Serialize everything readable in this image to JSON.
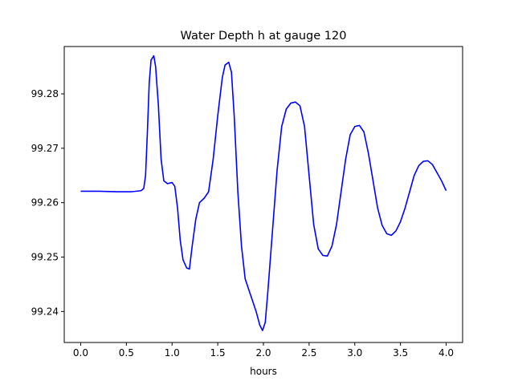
{
  "chart_data": {
    "type": "line",
    "title": "Water Depth h at gauge 120",
    "xlabel": "hours",
    "ylabel": "",
    "xlim": [
      -0.18,
      4.18
    ],
    "ylim": [
      99.2343,
      99.2887
    ],
    "x_ticks": [
      0.0,
      0.5,
      1.0,
      1.5,
      2.0,
      2.5,
      3.0,
      3.5,
      4.0
    ],
    "x_tick_labels": [
      "0.0",
      "0.5",
      "1.0",
      "1.5",
      "2.0",
      "2.5",
      "3.0",
      "3.5",
      "4.0"
    ],
    "y_ticks": [
      99.24,
      99.25,
      99.26,
      99.27,
      99.28
    ],
    "y_tick_labels": [
      "99.24",
      "99.25",
      "99.26",
      "99.27",
      "99.28"
    ],
    "grid": false,
    "legend": "none",
    "series": [
      {
        "color": "#0000ff",
        "points": [
          [
            0.0,
            99.2621
          ],
          [
            0.2,
            99.2621
          ],
          [
            0.4,
            99.262
          ],
          [
            0.55,
            99.262
          ],
          [
            0.66,
            99.2622
          ],
          [
            0.69,
            99.2626
          ],
          [
            0.71,
            99.265
          ],
          [
            0.73,
            99.273
          ],
          [
            0.75,
            99.282
          ],
          [
            0.77,
            99.2862
          ],
          [
            0.8,
            99.287
          ],
          [
            0.82,
            99.285
          ],
          [
            0.85,
            99.278
          ],
          [
            0.88,
            99.268
          ],
          [
            0.91,
            99.264
          ],
          [
            0.95,
            99.2635
          ],
          [
            1.0,
            99.2637
          ],
          [
            1.03,
            99.263
          ],
          [
            1.06,
            99.259
          ],
          [
            1.09,
            99.253
          ],
          [
            1.12,
            99.2495
          ],
          [
            1.16,
            99.248
          ],
          [
            1.19,
            99.2478
          ],
          [
            1.22,
            99.252
          ],
          [
            1.26,
            99.257
          ],
          [
            1.3,
            99.26
          ],
          [
            1.35,
            99.2608
          ],
          [
            1.4,
            99.262
          ],
          [
            1.45,
            99.268
          ],
          [
            1.5,
            99.276
          ],
          [
            1.55,
            99.283
          ],
          [
            1.58,
            99.2853
          ],
          [
            1.62,
            99.2858
          ],
          [
            1.65,
            99.284
          ],
          [
            1.68,
            99.276
          ],
          [
            1.72,
            99.262
          ],
          [
            1.76,
            99.252
          ],
          [
            1.8,
            99.246
          ],
          [
            1.84,
            99.244
          ],
          [
            1.88,
            99.242
          ],
          [
            1.92,
            99.24
          ],
          [
            1.96,
            99.2375
          ],
          [
            1.99,
            99.2365
          ],
          [
            2.02,
            99.238
          ],
          [
            2.05,
            99.244
          ],
          [
            2.1,
            99.255
          ],
          [
            2.15,
            99.266
          ],
          [
            2.2,
            99.274
          ],
          [
            2.25,
            99.2772
          ],
          [
            2.3,
            99.2783
          ],
          [
            2.35,
            99.2785
          ],
          [
            2.4,
            99.2778
          ],
          [
            2.45,
            99.274
          ],
          [
            2.5,
            99.265
          ],
          [
            2.55,
            99.256
          ],
          [
            2.6,
            99.2515
          ],
          [
            2.65,
            99.2503
          ],
          [
            2.7,
            99.2502
          ],
          [
            2.75,
            99.252
          ],
          [
            2.8,
            99.256
          ],
          [
            2.85,
            99.262
          ],
          [
            2.9,
            99.268
          ],
          [
            2.95,
            99.2725
          ],
          [
            3.0,
            99.274
          ],
          [
            3.05,
            99.2742
          ],
          [
            3.1,
            99.273
          ],
          [
            3.15,
            99.269
          ],
          [
            3.2,
            99.264
          ],
          [
            3.25,
            99.259
          ],
          [
            3.3,
            99.2558
          ],
          [
            3.35,
            99.2543
          ],
          [
            3.4,
            99.254
          ],
          [
            3.45,
            99.2548
          ],
          [
            3.5,
            99.2565
          ],
          [
            3.55,
            99.259
          ],
          [
            3.6,
            99.262
          ],
          [
            3.65,
            99.265
          ],
          [
            3.7,
            99.2668
          ],
          [
            3.75,
            99.2676
          ],
          [
            3.8,
            99.2677
          ],
          [
            3.85,
            99.267
          ],
          [
            3.9,
            99.2655
          ],
          [
            3.95,
            99.264
          ],
          [
            4.0,
            99.2622
          ]
        ]
      }
    ]
  }
}
